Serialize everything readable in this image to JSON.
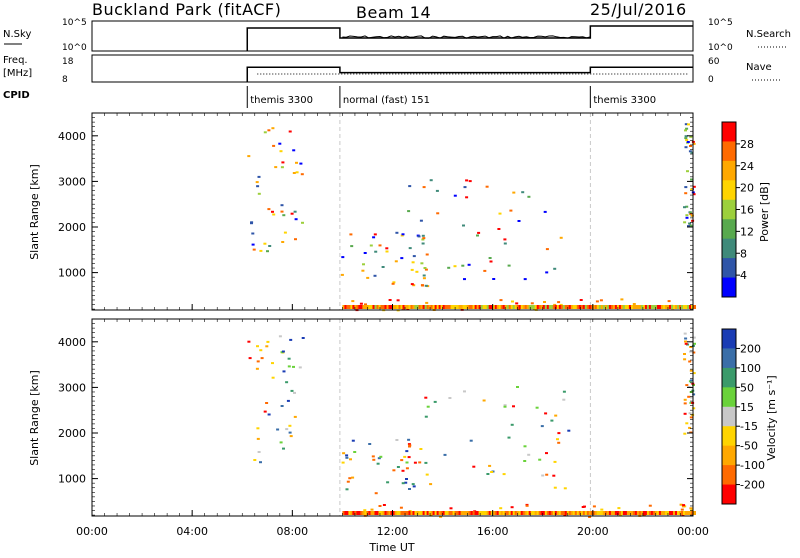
{
  "header": {
    "site": "Buckland Park (fitACF)",
    "beam": "Beam 14",
    "date": "25/Jul/2016"
  },
  "nsky_panel": {
    "label": "N.Sky",
    "right_label": "N.Search",
    "ticks_left": [
      "10^5",
      "10^0"
    ],
    "ticks_right": [
      "10^5",
      "10^0"
    ]
  },
  "freq_panel": {
    "label_line1": "Freq.",
    "label_line2": "[MHz]",
    "right_label": "Nave",
    "ticks_left": [
      "18",
      "8"
    ],
    "ticks_right": [
      "60",
      "0"
    ]
  },
  "cpid": {
    "label": "CPID",
    "segments": [
      {
        "start_hour": 6.2,
        "name": "themis 3300"
      },
      {
        "start_hour": 9.9,
        "name": "normal (fast) 151"
      },
      {
        "start_hour": 19.9,
        "name": "themis 3300"
      }
    ]
  },
  "power_panel": {
    "ylabel": "Slant Range [km]",
    "colorbar_title": "Power [dB]",
    "colorbar_ticks": [
      "28",
      "24",
      "20",
      "16",
      "12",
      "8",
      "4"
    ],
    "colorbar_colors": [
      "#ff0000",
      "#ff6a00",
      "#ffa800",
      "#ffd400",
      "#9ccf3c",
      "#58a94e",
      "#3f8a7a",
      "#2f55a8",
      "#0000ff"
    ]
  },
  "velocity_panel": {
    "ylabel": "Slant Range [km]",
    "colorbar_title": "Velocity [m s⁻¹]",
    "colorbar_ticks": [
      "200",
      "100",
      "50",
      "15",
      "-15",
      "-50",
      "-100",
      "-200"
    ],
    "colorbar_colors": [
      "#1a3cb4",
      "#3a6ea8",
      "#3a9a6a",
      "#6ad23a",
      "#c8c8c8",
      "#ffd400",
      "#ffa800",
      "#ff6a00",
      "#ff0000"
    ]
  },
  "x_axis": {
    "label": "Time UT",
    "ticks": [
      "00:00",
      "04:00",
      "08:00",
      "12:00",
      "16:00",
      "20:00",
      "00:00"
    ]
  },
  "chart_data": {
    "type": "heatmap",
    "x_range_hours": [
      0,
      24
    ],
    "y_range_km": [
      180,
      4500
    ],
    "y_ticks": [
      1000,
      2000,
      3000,
      4000
    ],
    "mode_changes_hours": [
      9.9,
      19.9
    ],
    "nsky_steps": [
      {
        "hour": 6.2,
        "value": "10^4"
      },
      {
        "hour": 9.9,
        "value": "10^2"
      },
      {
        "hour": 19.9,
        "value": "10^5"
      }
    ],
    "freq_steps_mhz": [
      {
        "hour": 6.2,
        "value": 12
      },
      {
        "hour": 9.9,
        "value": 10
      },
      {
        "hour": 19.9,
        "value": 12
      }
    ],
    "echo_regions": [
      {
        "t0": 6.2,
        "t1": 8.4,
        "r0": 1300,
        "r1": 4300
      },
      {
        "t0": 9.9,
        "t1": 13.5,
        "r0": 700,
        "r1": 1900
      },
      {
        "t0": 12.5,
        "t1": 19.0,
        "r0": 800,
        "r1": 3100
      },
      {
        "t0": 9.9,
        "t1": 24.0,
        "r0": 180,
        "r1": 450
      },
      {
        "t0": 23.6,
        "t1": 24.0,
        "r0": 2000,
        "r1": 4300
      }
    ]
  }
}
